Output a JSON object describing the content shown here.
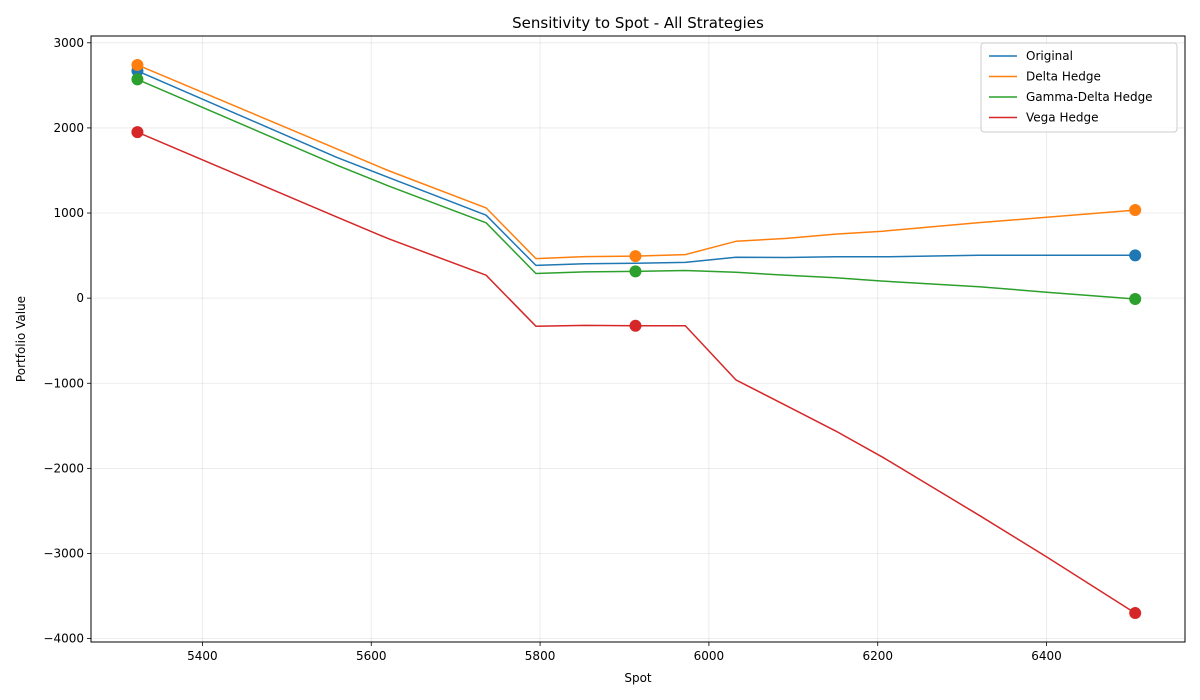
{
  "chart_data": {
    "type": "line",
    "title": "Sensitivity to Spot - All Strategies",
    "xlabel": "Spot",
    "ylabel": "Portfolio Value",
    "xlim": [
      5268,
      6564
    ],
    "ylim": [
      -4040,
      3080
    ],
    "xticks": [
      5400,
      5600,
      5800,
      6000,
      6200,
      6400
    ],
    "yticks": [
      -4000,
      -3000,
      -2000,
      -1000,
      0,
      1000,
      2000,
      3000
    ],
    "grid": true,
    "legend_position": "top-right",
    "series": [
      {
        "name": "Original",
        "color": "#1f77b4",
        "x": [
          5323,
          5560,
          5620,
          5736,
          5795,
          5853,
          5913,
          5972,
          6032,
          6092,
          6150,
          6206,
          6320,
          6400,
          6505
        ],
        "y": [
          2670,
          1650,
          1420,
          975,
          385,
          405,
          410,
          420,
          480,
          478,
          487,
          486,
          503,
          504,
          503
        ],
        "markers": [
          [
            5323,
            2670
          ],
          [
            6505,
            503
          ]
        ]
      },
      {
        "name": "Delta Hedge",
        "color": "#ff7f0e",
        "x": [
          5323,
          5560,
          5620,
          5736,
          5795,
          5853,
          5913,
          5972,
          6032,
          6092,
          6150,
          6206,
          6320,
          6400,
          6505
        ],
        "y": [
          2740,
          1750,
          1500,
          1060,
          465,
          488,
          494,
          512,
          668,
          702,
          752,
          786,
          888,
          950,
          1035
        ],
        "markers": [
          [
            5323,
            2740
          ],
          [
            5913,
            494
          ],
          [
            6505,
            1035
          ]
        ]
      },
      {
        "name": "Gamma-Delta Hedge",
        "color": "#2ca02c",
        "x": [
          5323,
          5560,
          5620,
          5736,
          5795,
          5853,
          5913,
          5972,
          6032,
          6092,
          6150,
          6206,
          6320,
          6400,
          6505
        ],
        "y": [
          2570,
          1560,
          1320,
          885,
          290,
          308,
          314,
          325,
          304,
          268,
          240,
          200,
          135,
          70,
          -10
        ],
        "markers": [
          [
            5323,
            2570
          ],
          [
            5913,
            314
          ],
          [
            6505,
            -10
          ]
        ]
      },
      {
        "name": "Vega Hedge",
        "color": "#d62728",
        "x": [
          5323,
          5560,
          5620,
          5736,
          5795,
          5853,
          5913,
          5972,
          6032,
          6092,
          6150,
          6206,
          6320,
          6400,
          6505
        ],
        "y": [
          1950,
          950,
          700,
          270,
          -330,
          -320,
          -325,
          -325,
          -960,
          -1265,
          -1560,
          -1870,
          -2550,
          -3040,
          -3700
        ],
        "markers": [
          [
            5323,
            1950
          ],
          [
            5913,
            -325
          ],
          [
            6505,
            -3700
          ]
        ]
      }
    ]
  }
}
